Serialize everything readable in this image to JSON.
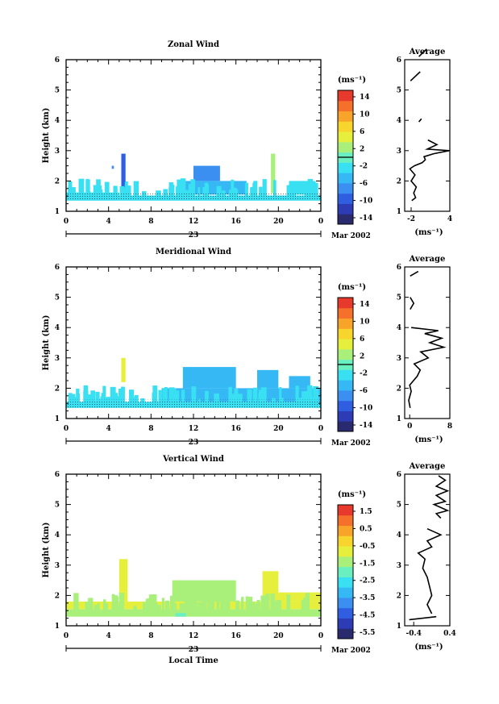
{
  "figure": {
    "bottom_label": "Local Time"
  },
  "chart_data": [
    {
      "type": "heatmap",
      "title": "Zonal Wind",
      "ylabel": "Height (km)",
      "y_ticks": [
        "1",
        "2",
        "3",
        "4",
        "5",
        "6"
      ],
      "ylim": [
        1,
        6
      ],
      "x_ticks": [
        "0",
        "4",
        "8",
        "12",
        "16",
        "20",
        "0"
      ],
      "xlim": [
        0,
        24
      ],
      "date_day": "23",
      "date_month": "Mar 2002",
      "colorbar_unit": "(ms⁻¹)",
      "colorbar_ticks": [
        "14",
        "10",
        "6",
        "2",
        "-2",
        "-6",
        "-10",
        "-14"
      ],
      "colorbar_range": [
        -16,
        16
      ],
      "field_base_value": -3,
      "cells": [
        {
          "x0": 0,
          "x1": 5,
          "y0": 1.35,
          "y1": 1.62,
          "value": -3
        },
        {
          "x0": 5,
          "x1": 24,
          "y0": 1.35,
          "y1": 1.52,
          "value": -3
        },
        {
          "x0": 5.2,
          "x1": 5.6,
          "y0": 1.6,
          "y1": 2.9,
          "value": -9
        },
        {
          "x0": 4.3,
          "x1": 4.5,
          "y0": 2.4,
          "y1": 2.5,
          "value": -7
        },
        {
          "x0": 10.5,
          "x1": 17,
          "y0": 1.55,
          "y1": 2.0,
          "value": -5
        },
        {
          "x0": 12,
          "x1": 14.5,
          "y0": 2.0,
          "y1": 2.5,
          "value": -7
        },
        {
          "x0": 19.3,
          "x1": 19.7,
          "y0": 1.6,
          "y1": 2.9,
          "value": 3
        },
        {
          "x0": 21,
          "x1": 23.5,
          "y0": 1.55,
          "y1": 2.0,
          "value": -3
        }
      ],
      "inset": {
        "title": "Average",
        "x_ticks": [
          "-2",
          "4"
        ],
        "xlim": [
          -3,
          4
        ],
        "xlabel": "(ms⁻¹)",
        "segments": [
          [
            [
              -1.9,
              1.35
            ],
            [
              -1.3,
              1.45
            ],
            [
              -1.6,
              1.6
            ],
            [
              -1.2,
              1.8
            ],
            [
              -2.0,
              2.0
            ],
            [
              -1.4,
              2.2
            ],
            [
              -2.2,
              2.4
            ],
            [
              -1.5,
              2.5
            ],
            [
              -0.3,
              2.6
            ],
            [
              0.2,
              2.7
            ],
            [
              0.0,
              2.8
            ],
            [
              1.5,
              2.9
            ],
            [
              3.9,
              3.0
            ],
            [
              0.5,
              3.05
            ],
            [
              2.0,
              3.2
            ],
            [
              0.6,
              3.35
            ]
          ],
          [
            [
              -0.8,
              3.95
            ],
            [
              -0.4,
              4.05
            ]
          ],
          [
            [
              -2.1,
              5.3
            ],
            [
              -0.6,
              5.6
            ]
          ],
          [
            [
              -0.8,
              6.1
            ],
            [
              0.4,
              6.35
            ]
          ]
        ]
      }
    },
    {
      "type": "heatmap",
      "title": "Meridional Wind",
      "ylabel": "Height (km)",
      "y_ticks": [
        "1",
        "2",
        "3",
        "4",
        "5",
        "6"
      ],
      "ylim": [
        1,
        6
      ],
      "x_ticks": [
        "0",
        "4",
        "8",
        "12",
        "16",
        "20",
        "0"
      ],
      "xlim": [
        0,
        24
      ],
      "date_day": "23",
      "date_month": "Mar 2002",
      "colorbar_unit": "(ms⁻¹)",
      "colorbar_ticks": [
        "14",
        "10",
        "6",
        "2",
        "-2",
        "-6",
        "-10",
        "-14"
      ],
      "colorbar_range": [
        -16,
        16
      ],
      "field_base_value": -3,
      "cells": [
        {
          "x0": 0,
          "x1": 24,
          "y0": 1.35,
          "y1": 1.55,
          "value": -3
        },
        {
          "x0": 5.2,
          "x1": 5.6,
          "y0": 2.2,
          "y1": 3.0,
          "value": 5
        },
        {
          "x0": 9,
          "x1": 24,
          "y0": 1.55,
          "y1": 2.0,
          "value": -5
        },
        {
          "x0": 11,
          "x1": 16,
          "y0": 2.0,
          "y1": 2.7,
          "value": -5
        },
        {
          "x0": 18,
          "x1": 20,
          "y0": 2.0,
          "y1": 2.6,
          "value": -5
        },
        {
          "x0": 21,
          "x1": 23,
          "y0": 2.0,
          "y1": 2.4,
          "value": -5
        }
      ],
      "inset": {
        "title": "Average",
        "x_ticks": [
          "0",
          "8"
        ],
        "xlim": [
          -1,
          8
        ],
        "xlabel": "(ms⁻¹)",
        "segments": [
          [
            [
              0.1,
              1.35
            ],
            [
              -0.2,
              1.6
            ],
            [
              0.3,
              1.9
            ],
            [
              0.0,
              2.1
            ],
            [
              1.5,
              2.4
            ],
            [
              2.1,
              2.6
            ],
            [
              0.9,
              2.8
            ],
            [
              3.7,
              3.0
            ],
            [
              2.2,
              3.2
            ],
            [
              6.8,
              3.35
            ],
            [
              4.0,
              3.5
            ],
            [
              6.4,
              3.65
            ],
            [
              3.0,
              3.8
            ],
            [
              5.7,
              3.9
            ],
            [
              0.3,
              4.0
            ]
          ],
          [
            [
              0.1,
              4.6
            ],
            [
              0.8,
              4.8
            ],
            [
              0.1,
              5.0
            ]
          ],
          [
            [
              0.1,
              5.7
            ],
            [
              1.7,
              5.85
            ]
          ]
        ]
      }
    },
    {
      "type": "heatmap",
      "title": "Vertical Wind",
      "ylabel": "Height (km)",
      "y_ticks": [
        "1",
        "2",
        "3",
        "4",
        "5",
        "6"
      ],
      "ylim": [
        1,
        6
      ],
      "x_ticks": [
        "0",
        "4",
        "8",
        "12",
        "16",
        "20",
        "0"
      ],
      "xlim": [
        0,
        24
      ],
      "date_day": "23",
      "date_month": "Mar 2002",
      "colorbar_unit": "(ms⁻¹)",
      "colorbar_ticks": [
        "1.5",
        "0.5",
        "-0.5",
        "-1.5",
        "-2.5",
        "-3.5",
        "-4.5",
        "-5.5"
      ],
      "colorbar_range": [
        -6,
        2
      ],
      "field_base_value": -1.2,
      "cells": [
        {
          "x0": 0,
          "x1": 24,
          "y0": 1.3,
          "y1": 1.55,
          "value": -1.2
        },
        {
          "x0": 0,
          "x1": 24,
          "y0": 1.55,
          "y1": 1.8,
          "value": -0.8
        },
        {
          "x0": 5,
          "x1": 5.8,
          "y0": 1.8,
          "y1": 3.2,
          "value": -0.6
        },
        {
          "x0": 10,
          "x1": 16,
          "y0": 1.8,
          "y1": 2.5,
          "value": -1.2
        },
        {
          "x0": 18.5,
          "x1": 20,
          "y0": 1.8,
          "y1": 2.8,
          "value": -0.9
        },
        {
          "x0": 20,
          "x1": 24,
          "y0": 1.8,
          "y1": 2.1,
          "value": -1.0
        },
        {
          "x0": 10.3,
          "x1": 11.3,
          "y0": 1.3,
          "y1": 1.42,
          "value": -1.9
        }
      ],
      "inset": {
        "title": "Average",
        "x_ticks": [
          "-0.4",
          "0.4"
        ],
        "xlim": [
          -0.6,
          0.4
        ],
        "xlabel": "(ms⁻¹)",
        "segments": [
          [
            [
              -0.5,
              1.2
            ],
            [
              0.1,
              1.3
            ]
          ],
          [
            [
              0.0,
              1.4
            ],
            [
              -0.1,
              1.7
            ],
            [
              0.0,
              2.0
            ],
            [
              -0.05,
              2.3
            ],
            [
              -0.1,
              2.6
            ],
            [
              -0.2,
              2.9
            ],
            [
              -0.15,
              3.2
            ],
            [
              -0.3,
              3.4
            ],
            [
              0.0,
              3.6
            ],
            [
              -0.1,
              3.8
            ],
            [
              0.2,
              4.0
            ],
            [
              -0.1,
              4.2
            ]
          ],
          [
            [
              0.2,
              4.55
            ],
            [
              0.1,
              4.7
            ],
            [
              0.35,
              4.8
            ],
            [
              0.05,
              5.0
            ],
            [
              0.3,
              5.1
            ],
            [
              0.1,
              5.3
            ],
            [
              0.35,
              5.45
            ],
            [
              0.1,
              5.6
            ],
            [
              0.3,
              5.8
            ],
            [
              0.15,
              5.95
            ]
          ]
        ]
      }
    }
  ]
}
